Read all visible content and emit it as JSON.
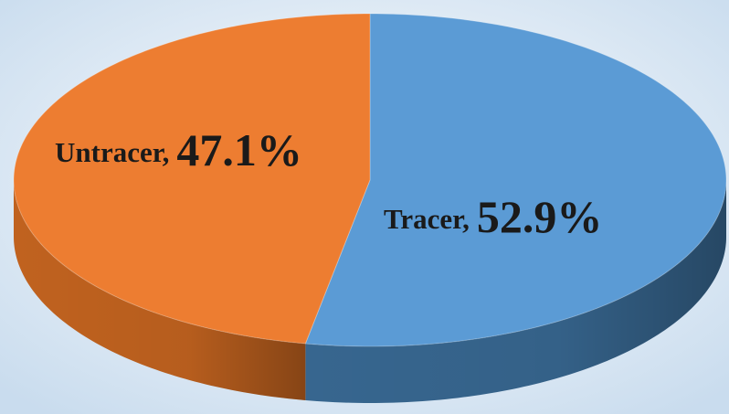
{
  "chart_data": {
    "type": "pie",
    "categories": [
      "Tracer,",
      "Untracer,"
    ],
    "values": [
      52.9,
      47.1
    ],
    "value_labels": [
      "52.9%",
      "47.1%"
    ],
    "colors": [
      "#5b9bd5",
      "#ed7d31"
    ],
    "side_colors": [
      "#37668f",
      "#c0621f"
    ]
  }
}
